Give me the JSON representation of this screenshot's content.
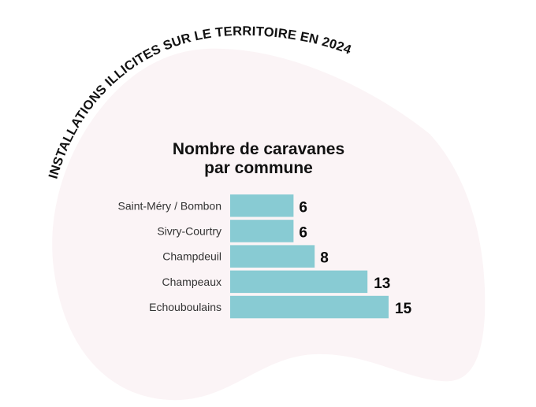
{
  "header": {
    "arc_title": "INSTALLATIONS ILLICITES SUR LE TERRITOIRE EN 2024"
  },
  "colors": {
    "background": "#ffffff",
    "blob": "#fbf4f6",
    "bar": "#88cbd3",
    "text": "#111111",
    "label": "#333333"
  },
  "chart_data": {
    "type": "bar",
    "orientation": "horizontal",
    "title_lines": [
      "Nombre de caravanes",
      "par commune"
    ],
    "title": "Nombre de caravanes par commune",
    "xlabel": "",
    "ylabel": "",
    "categories": [
      "Saint-Méry / Bombon",
      "Sivry-Courtry",
      "Champdeuil",
      "Champeaux",
      "Echouboulains"
    ],
    "values": [
      6,
      6,
      8,
      13,
      15
    ],
    "data_labels": [
      "6",
      "6",
      "8",
      "13",
      "15"
    ],
    "xlim": [
      0,
      15
    ],
    "grid": false,
    "legend": "none"
  }
}
